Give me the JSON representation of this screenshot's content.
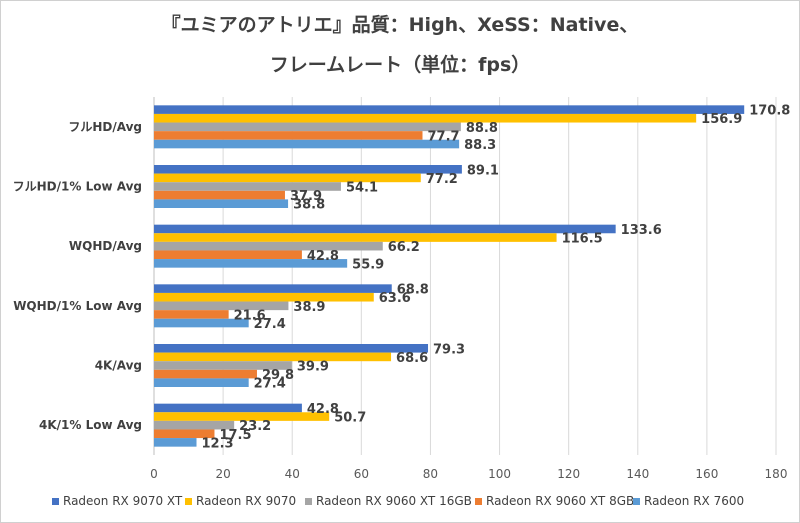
{
  "chart_data": {
    "type": "bar",
    "orientation": "horizontal",
    "title": "『ユミアのアトリエ』品質：High、XeSS：Native、",
    "subtitle": "フレームレート（単位：fps）",
    "xlabel": "",
    "ylabel": "",
    "xlim": [
      0,
      180
    ],
    "xticks": [
      0,
      20,
      40,
      60,
      80,
      100,
      120,
      140,
      160,
      180
    ],
    "grid": true,
    "legend_position": "bottom",
    "categories": [
      "フルHD/Avg",
      "フルHD/1% Low  Avg",
      "WQHD/Avg",
      "WQHD/1% Low  Avg",
      "4K/Avg",
      "4K/1% Low Avg"
    ],
    "series": [
      {
        "name": "Radeon RX 9070 XT",
        "color": "#4472C4",
        "values": [
          170.8,
          89.1,
          133.6,
          68.8,
          79.3,
          42.8
        ]
      },
      {
        "name": "Radeon RX 9070",
        "color": "#FFC000",
        "values": [
          156.9,
          77.2,
          116.5,
          63.6,
          68.6,
          50.7
        ]
      },
      {
        "name": "Radeon RX 9060 XT 16GB",
        "color": "#A5A5A5",
        "values": [
          88.8,
          54.1,
          66.2,
          38.9,
          39.9,
          23.2
        ]
      },
      {
        "name": "Radeon RX 9060 XT 8GB",
        "color": "#ED7D31",
        "values": [
          77.7,
          37.9,
          42.8,
          21.6,
          29.8,
          17.5
        ]
      },
      {
        "name": "Radeon RX 7600",
        "color": "#5B9BD5",
        "values": [
          88.3,
          38.8,
          55.9,
          27.4,
          27.4,
          12.3
        ]
      }
    ]
  }
}
